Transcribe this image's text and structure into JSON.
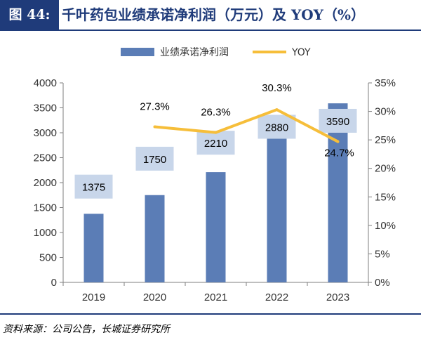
{
  "header": {
    "figure_label": "图 44:",
    "title": "千叶药包业绩承诺净利润（万元）及 YOY（%）"
  },
  "chart_data": {
    "type": "bar",
    "title": "千叶药包业绩承诺净利润（万元）及 YOY（%）",
    "categories": [
      "2019",
      "2020",
      "2021",
      "2022",
      "2023"
    ],
    "series": [
      {
        "name": "业绩承诺净利润",
        "type": "bar",
        "axis": "left",
        "values": [
          1375,
          1750,
          2210,
          2880,
          3590
        ],
        "labels": [
          "1375",
          "1750",
          "2210",
          "2880",
          "3590"
        ]
      },
      {
        "name": "YOY",
        "type": "line",
        "axis": "right",
        "values": [
          null,
          27.3,
          26.3,
          30.3,
          24.7
        ],
        "labels": [
          null,
          "27.3%",
          "26.3%",
          "30.3%",
          "24.7%"
        ]
      }
    ],
    "ylim": [
      0,
      4000
    ],
    "yticks": [
      "0",
      "500",
      "1000",
      "1500",
      "2000",
      "2500",
      "3000",
      "3500",
      "4000"
    ],
    "y2lim": [
      0,
      35
    ],
    "y2ticks": [
      "0%",
      "5%",
      "10%",
      "15%",
      "20%",
      "25%",
      "30%",
      "35%"
    ],
    "legend": "top-center",
    "colors": {
      "bar": "#5B7DB6",
      "line": "#F6BE3A",
      "label_bg": "#C8D6EA"
    }
  },
  "footer": {
    "source": "资料来源：公司公告，长城证券研究所"
  }
}
